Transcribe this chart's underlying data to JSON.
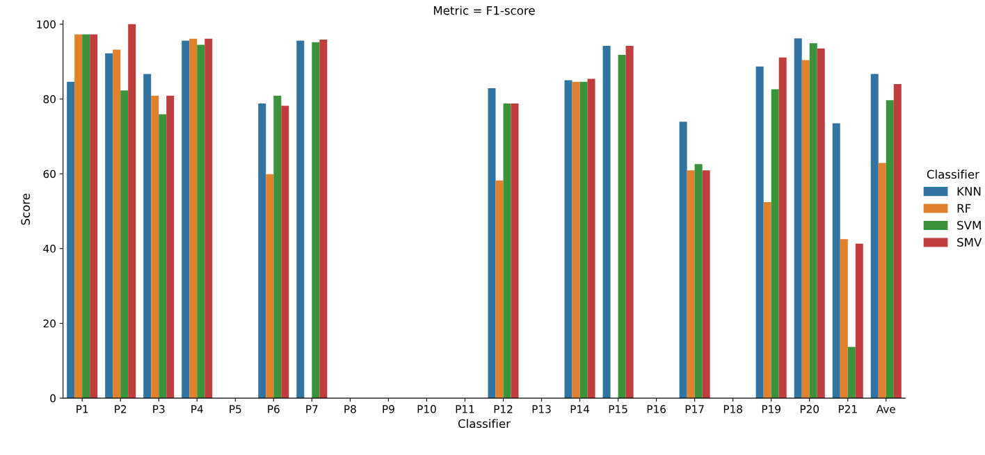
{
  "chart_data": {
    "type": "bar",
    "title": "Metric = F1-score",
    "xlabel": "Classifier",
    "ylabel": "Score",
    "legend_title": "Classifier",
    "categories": [
      "P1",
      "P2",
      "P3",
      "P4",
      "P5",
      "P6",
      "P7",
      "P8",
      "P9",
      "P10",
      "P11",
      "P12",
      "P13",
      "P14",
      "P15",
      "P16",
      "P17",
      "P18",
      "P19",
      "P20",
      "P21",
      "Ave"
    ],
    "series": [
      {
        "name": "KNN",
        "color": "#3274a1",
        "values": [
          84.6,
          92.2,
          86.7,
          95.6,
          null,
          78.8,
          95.6,
          null,
          null,
          null,
          null,
          82.9,
          null,
          85.0,
          94.2,
          null,
          73.9,
          null,
          88.7,
          96.2,
          73.5,
          86.7
        ]
      },
      {
        "name": "RF",
        "color": "#e1812c",
        "values": [
          97.3,
          93.2,
          80.9,
          96.1,
          null,
          59.9,
          null,
          null,
          null,
          null,
          null,
          58.2,
          null,
          84.6,
          null,
          null,
          60.9,
          null,
          52.4,
          90.4,
          42.5,
          62.9
        ]
      },
      {
        "name": "SVM",
        "color": "#3a923a",
        "values": [
          97.3,
          82.3,
          75.9,
          94.5,
          null,
          80.9,
          95.2,
          null,
          null,
          null,
          null,
          78.8,
          null,
          84.6,
          91.8,
          null,
          62.6,
          null,
          82.6,
          94.9,
          13.7,
          79.7
        ]
      },
      {
        "name": "SMV",
        "color": "#c03d3e",
        "values": [
          97.3,
          100,
          80.9,
          96.1,
          null,
          78.2,
          95.9,
          null,
          null,
          null,
          null,
          78.8,
          null,
          85.4,
          94.2,
          null,
          60.9,
          null,
          91.1,
          93.5,
          41.3,
          84.0
        ]
      }
    ],
    "ylim": [
      0,
      101
    ],
    "yticks": [
      0,
      20,
      40,
      60,
      80,
      100
    ],
    "grid": false,
    "legend": "right"
  }
}
